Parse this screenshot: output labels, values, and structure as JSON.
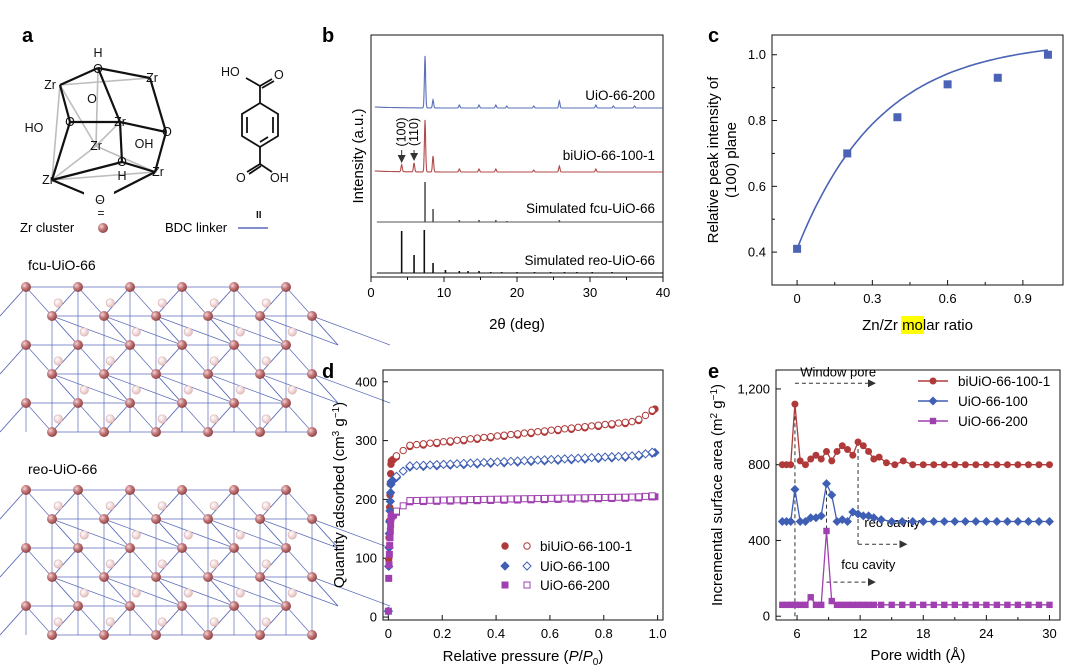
{
  "panel_labels": {
    "a": "a",
    "b": "b",
    "c": "c",
    "d": "d",
    "e": "e"
  },
  "panel_a": {
    "cluster_atoms": {
      "zr_1": "Zr",
      "zr_2": "Zr",
      "zr_3": "Zr",
      "zr_4": "Zr",
      "zr_5": "Zr",
      "zr_6": "Zr",
      "o_1": "O",
      "o_2": "O",
      "o_3": "O",
      "o_4": "O",
      "o_5": "O",
      "o_6": "O",
      "h_1": "H",
      "h_2": "H",
      "ho": "HO",
      "oh": "OH"
    },
    "linker_atoms": {
      "ho": "HO",
      "o_top": "O",
      "o_bottom": "O",
      "oh": "OH"
    },
    "eq_symbol": "=",
    "cluster_label": "Zr cluster",
    "linker_label": "BDC linker",
    "linker_symbol": "II",
    "fcu_title": "fcu-UiO-66",
    "reo_title": "reo-UiO-66",
    "colors": {
      "node": "#b8676a",
      "node_light": "#eecfcf",
      "bond": "#5a6ab8"
    }
  },
  "chart_data": [
    {
      "panel": "b",
      "type": "line",
      "xlabel": "2θ (deg)",
      "ylabel": "Intensity (a.u.)",
      "xlim": [
        0,
        40
      ],
      "xticks": [
        0,
        10,
        20,
        30,
        40
      ],
      "series": [
        {
          "name": "UiO-66-200",
          "color": "#5a6fb8",
          "peaks": [
            [
              7.4,
              52
            ],
            [
              8.5,
              8
            ],
            [
              12.1,
              3
            ],
            [
              14.8,
              3
            ],
            [
              17.1,
              3
            ],
            [
              18.6,
              2
            ],
            [
              22.3,
              2
            ],
            [
              25.8,
              7
            ],
            [
              30.8,
              3
            ],
            [
              33.2,
              2
            ],
            [
              36.1,
              2
            ]
          ]
        },
        {
          "name": "biUiO-66-100-1",
          "color": "#b04a4a",
          "peaks": [
            [
              4.2,
              7
            ],
            [
              5.9,
              9
            ],
            [
              7.4,
              52
            ],
            [
              8.5,
              16
            ],
            [
              12.1,
              3
            ],
            [
              14.8,
              3
            ],
            [
              17.1,
              3
            ],
            [
              22.3,
              2
            ],
            [
              25.8,
              6
            ],
            [
              30.8,
              3
            ]
          ]
        },
        {
          "name": "Simulated fcu-UiO-66",
          "color": "#555555",
          "sticks": [
            [
              7.4,
              40
            ],
            [
              8.5,
              13
            ],
            [
              12.1,
              2
            ],
            [
              14.8,
              2
            ],
            [
              17.1,
              2
            ],
            [
              18.6,
              1
            ],
            [
              25.8,
              2
            ]
          ]
        },
        {
          "name": "Simulated reo-UiO-66",
          "color": "#111111",
          "sticks": [
            [
              4.2,
              42
            ],
            [
              5.9,
              18
            ],
            [
              7.3,
              43
            ],
            [
              8.5,
              10
            ],
            [
              10.2,
              3
            ],
            [
              12.1,
              2
            ],
            [
              13.3,
              2
            ],
            [
              14.8,
              2
            ],
            [
              16.4,
              1
            ],
            [
              17.9,
              1
            ],
            [
              20.0,
              1
            ],
            [
              22.4,
              1
            ],
            [
              24.6,
              1
            ],
            [
              26.5,
              1
            ],
            [
              28.2,
              1
            ],
            [
              30.3,
              1
            ],
            [
              33.0,
              1
            ]
          ]
        }
      ],
      "annotations": [
        "(100)",
        "(110)"
      ]
    },
    {
      "panel": "c",
      "type": "scatter",
      "xlabel_parts": [
        "Zn/Zr ",
        "mo",
        "lar ratio"
      ],
      "ylabel_line1": "Relative peak intensity of",
      "ylabel_line2": "(100) plane",
      "xlim": [
        -0.1,
        1.06
      ],
      "ylim": [
        0.3,
        1.06
      ],
      "xticks": [
        0,
        0.3,
        0.6,
        0.9
      ],
      "yticks": [
        0.4,
        0.6,
        0.8,
        1.0
      ],
      "color": "#4a63b5",
      "highlight": "#ffff00",
      "x": [
        0,
        0.2,
        0.4,
        0.6,
        0.8,
        1.0
      ],
      "y": [
        0.41,
        0.7,
        0.81,
        0.91,
        0.93,
        1.0
      ]
    },
    {
      "panel": "d",
      "type": "scatter",
      "xlabel": "Relative pressure (P/P0)",
      "ylabel": "Quantity adsorbed (cm3 g−1)",
      "xlim": [
        -0.02,
        1.02
      ],
      "ylim": [
        -5,
        420
      ],
      "xticks": [
        0,
        0.2,
        0.4,
        0.6,
        0.8,
        1.0
      ],
      "yticks": [
        0,
        100,
        200,
        300,
        400
      ],
      "series": [
        {
          "name": "biUiO-66-100-1",
          "color": "#b03a3a",
          "marker": "circle",
          "y0": 10,
          "ymid": 290,
          "y09": 330,
          "yend": 358
        },
        {
          "name": "UiO-66-100",
          "color": "#3f5fb5",
          "marker": "diamond",
          "y0": 10,
          "ymid": 255,
          "y09": 272,
          "yend": 281
        },
        {
          "name": "UiO-66-200",
          "color": "#a040b0",
          "marker": "square",
          "y0": 10,
          "ymid": 196,
          "y09": 202,
          "yend": 205
        }
      ]
    },
    {
      "panel": "e",
      "type": "line",
      "xlabel": "Pore width (Å)",
      "ylabel": "Incremental surface area (m2 g−1)",
      "xlim": [
        4,
        31
      ],
      "ylim": [
        -20,
        1300
      ],
      "xticks": [
        6,
        12,
        18,
        24,
        30
      ],
      "yticks": [
        0,
        400,
        800,
        1200
      ],
      "ytick_labels": [
        "0",
        "400",
        "800",
        "1,200"
      ],
      "series": [
        {
          "name": "biUiO-66-100-1",
          "color": "#b03a3a",
          "marker": "circle",
          "x": [
            4.6,
            5.0,
            5.4,
            5.8,
            6.3,
            6.8,
            7.3,
            7.8,
            8.3,
            8.8,
            9.3,
            9.8,
            10.3,
            10.8,
            11.3,
            11.8,
            12.3,
            12.8,
            13.3,
            13.8,
            14.5,
            15.3,
            16.1,
            17.0,
            18.0,
            19.0,
            20.0,
            21.0,
            22.0,
            23.0,
            24.0,
            25.0,
            26.0,
            27.0,
            28.0,
            29.0,
            30.0
          ],
          "y": [
            800,
            800,
            800,
            1120,
            820,
            800,
            830,
            850,
            830,
            870,
            820,
            870,
            900,
            880,
            850,
            920,
            900,
            870,
            830,
            840,
            810,
            800,
            820,
            800,
            800,
            800,
            800,
            800,
            800,
            800,
            800,
            800,
            800,
            800,
            800,
            800,
            800
          ]
        },
        {
          "name": "UiO-66-100",
          "color": "#3f5fb5",
          "marker": "diamond",
          "x": [
            4.6,
            5.0,
            5.4,
            5.8,
            6.3,
            6.8,
            7.3,
            7.8,
            8.3,
            8.8,
            9.3,
            9.8,
            10.3,
            10.8,
            11.3,
            11.8,
            12.3,
            12.8,
            13.3,
            14.0,
            15.0,
            16.0,
            17.0,
            18.0,
            19.0,
            20.0,
            21.0,
            22.0,
            23.0,
            24.0,
            25.0,
            26.0,
            27.0,
            28.0,
            29.0,
            30.0
          ],
          "y": [
            500,
            500,
            500,
            670,
            500,
            500,
            520,
            520,
            530,
            700,
            640,
            500,
            510,
            500,
            550,
            540,
            530,
            530,
            520,
            510,
            500,
            500,
            500,
            500,
            500,
            500,
            500,
            500,
            500,
            500,
            500,
            500,
            500,
            500,
            500,
            500
          ]
        },
        {
          "name": "UiO-66-200",
          "color": "#a040b0",
          "marker": "square",
          "x": [
            4.6,
            5.0,
            5.4,
            5.8,
            6.3,
            6.8,
            7.3,
            7.8,
            8.3,
            8.8,
            9.3,
            9.8,
            10.3,
            10.8,
            11.3,
            11.8,
            12.3,
            12.8,
            13.3,
            14.0,
            15.0,
            16.0,
            17.0,
            18.0,
            19.0,
            20.0,
            21.0,
            22.0,
            23.0,
            24.0,
            25.0,
            26.0,
            27.0,
            28.0,
            29.0,
            30.0
          ],
          "y": [
            60,
            60,
            60,
            60,
            60,
            60,
            100,
            60,
            60,
            450,
            80,
            60,
            60,
            60,
            60,
            60,
            60,
            60,
            60,
            60,
            60,
            60,
            60,
            60,
            60,
            60,
            60,
            60,
            60,
            60,
            60,
            60,
            60,
            60,
            60,
            60
          ]
        }
      ],
      "annotations": {
        "window": "Window pore",
        "reo": "reo cavity",
        "fcu": "fcu cavity"
      }
    }
  ]
}
